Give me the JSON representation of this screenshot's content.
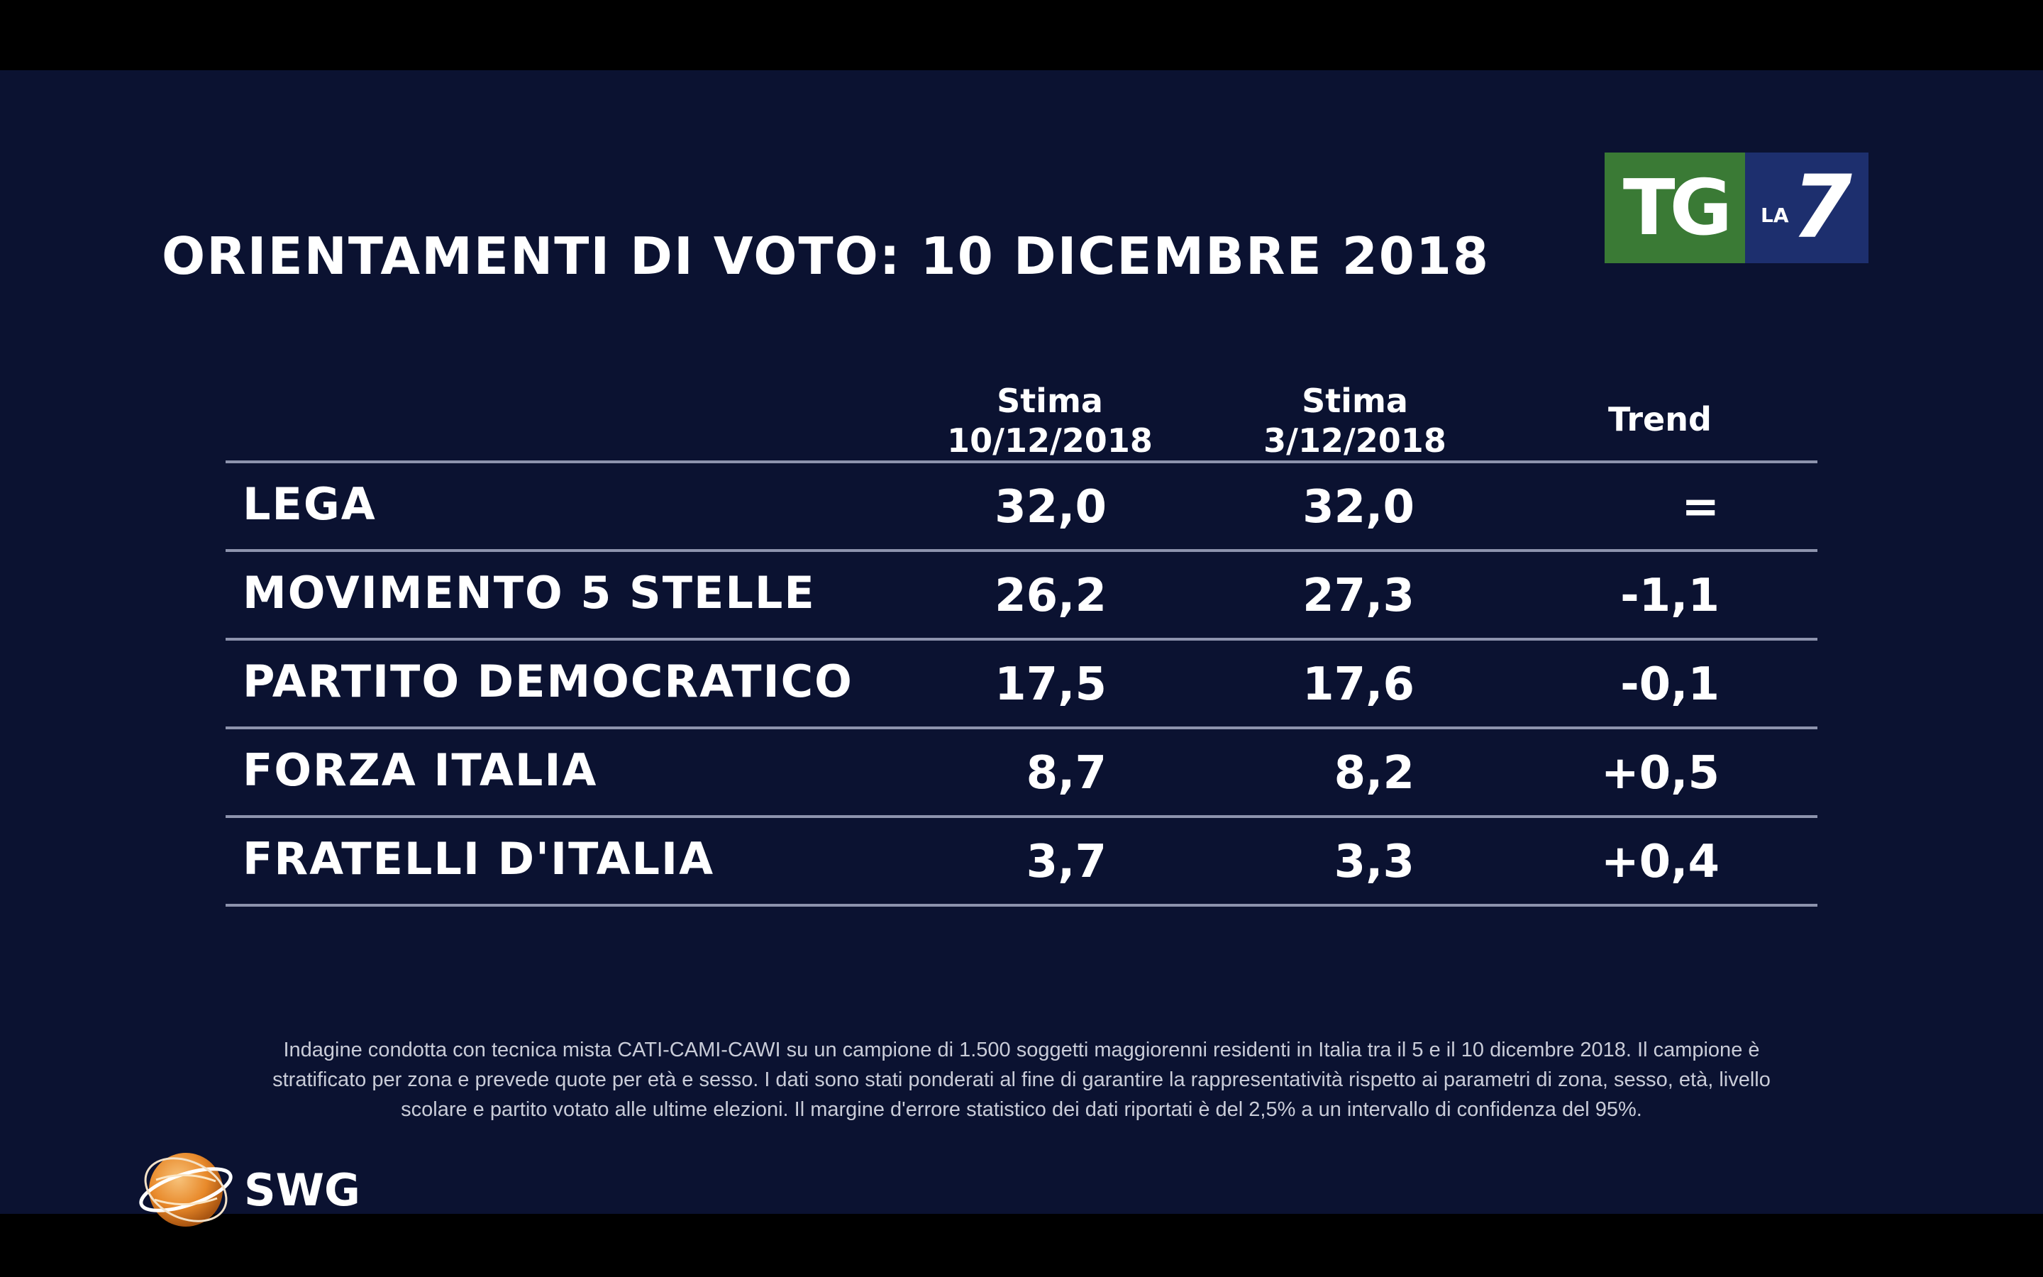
{
  "title": "ORIENTAMENTI DI VOTO: 10 DICEMBRE 2018",
  "logo": {
    "tg": "TG",
    "la": "LA",
    "seven": "7"
  },
  "chart_data": {
    "type": "table",
    "title": "ORIENTAMENTI DI VOTO: 10 DICEMBRE 2018",
    "columns": [
      {
        "line1": "Stima",
        "line2": "10/12/2018"
      },
      {
        "line1": "Stima",
        "line2": "3/12/2018"
      },
      {
        "line1": "Trend",
        "line2": ""
      }
    ],
    "rows": [
      {
        "label": "LEGA",
        "stima_10_12": "32,0",
        "stima_3_12": "32,0",
        "trend": "="
      },
      {
        "label": "MOVIMENTO 5 STELLE",
        "stima_10_12": "26,2",
        "stima_3_12": "27,3",
        "trend": "-1,1"
      },
      {
        "label": "PARTITO DEMOCRATICO",
        "stima_10_12": "17,5",
        "stima_3_12": "17,6",
        "trend": "-0,1"
      },
      {
        "label": "FORZA ITALIA",
        "stima_10_12": "8,7",
        "stima_3_12": "8,2",
        "trend": "+0,5"
      },
      {
        "label": "FRATELLI D'ITALIA",
        "stima_10_12": "3,7",
        "stima_3_12": "3,3",
        "trend": "+0,4"
      }
    ]
  },
  "note": {
    "line1": "Indagine condotta con tecnica mista CATI-CAMI-CAWI su un campione di 1.500 soggetti maggiorenni residenti in Italia tra il 5 e il 10 dicembre 2018. Il campione è",
    "line2": "stratificato per zona e prevede quote per età e sesso. I dati sono stati ponderati al fine di garantire la rappresentatività rispetto ai parametri di zona, sesso, età, livello",
    "line3": "scolare e partito votato alle ultime elezioni. Il margine d'errore statistico dei dati riportati è del 2,5% a un intervallo di confidenza del 95%."
  },
  "brand": {
    "name": "SWG",
    "globe_color": "#e8892a"
  },
  "colors": {
    "background": "#0b1231",
    "tg_green": "#3a7a35",
    "la7_blue": "#1d2f6e",
    "rule": "#8d93ad"
  }
}
